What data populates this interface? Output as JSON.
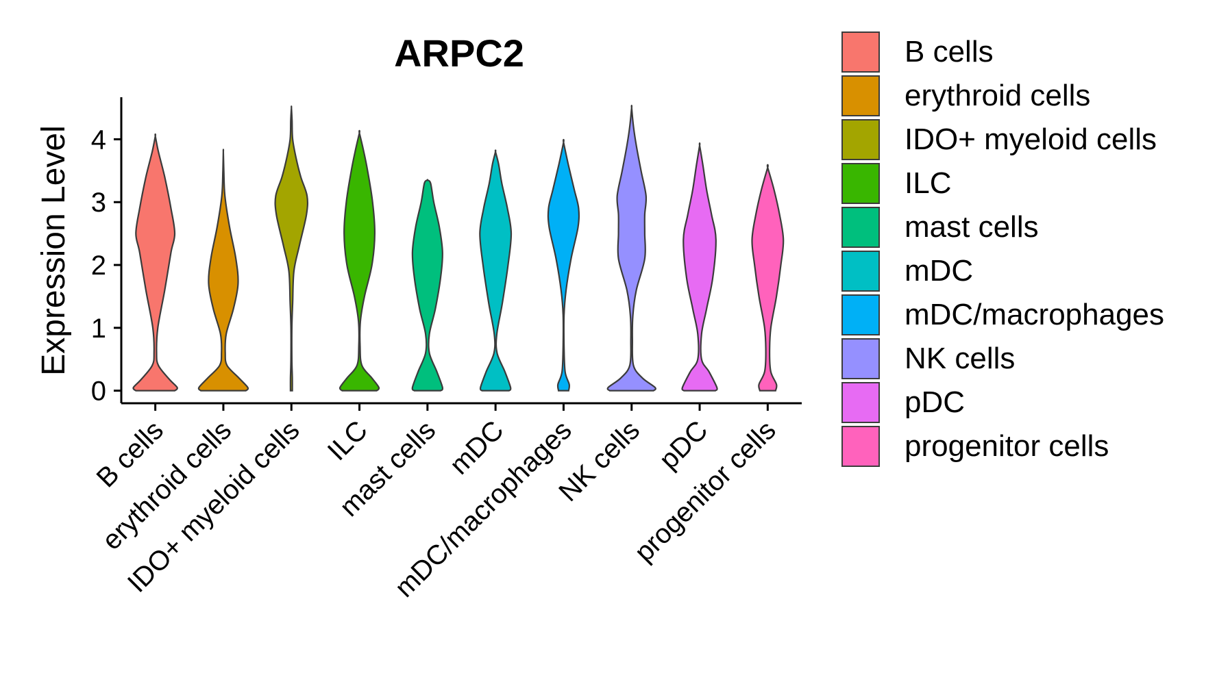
{
  "chart_data": {
    "type": "violin",
    "title": "ARPC2",
    "xlabel": "",
    "ylabel": "Expression Level",
    "ylim": [
      -0.2,
      4.8
    ],
    "yticks": [
      0,
      1,
      2,
      3,
      4
    ],
    "categories": [
      "B cells",
      "erythroid cells",
      "IDO+ myeloid cells",
      "ILC",
      "mast cells",
      "mDC",
      "mDC/macrophages",
      "NK cells",
      "pDC",
      "progenitor cells"
    ],
    "colors": [
      "#F8766D",
      "#D89000",
      "#A3A500",
      "#39B600",
      "#00BF7D",
      "#00BFC4",
      "#00B0F6",
      "#9590FF",
      "#E76BF3",
      "#FF62BC"
    ],
    "max_values": [
      4.05,
      3.8,
      4.5,
      4.1,
      3.35,
      3.8,
      3.95,
      4.5,
      3.9,
      3.55
    ],
    "density_profiles": [
      [
        [
          0,
          0.62
        ],
        [
          0.05,
          0.7
        ],
        [
          0.18,
          0.45
        ],
        [
          0.4,
          0.1
        ],
        [
          0.6,
          0.04
        ],
        [
          1.0,
          0.08
        ],
        [
          1.6,
          0.3
        ],
        [
          2.2,
          0.5
        ],
        [
          2.5,
          0.62
        ],
        [
          2.9,
          0.5
        ],
        [
          3.4,
          0.3
        ],
        [
          3.8,
          0.1
        ],
        [
          4.05,
          0
        ]
      ],
      [
        [
          0,
          0.72
        ],
        [
          0.05,
          0.78
        ],
        [
          0.2,
          0.5
        ],
        [
          0.4,
          0.12
        ],
        [
          0.6,
          0.06
        ],
        [
          0.9,
          0.09
        ],
        [
          1.3,
          0.32
        ],
        [
          1.7,
          0.47
        ],
        [
          2.1,
          0.4
        ],
        [
          2.6,
          0.2
        ],
        [
          3.1,
          0.05
        ],
        [
          3.5,
          0.015
        ],
        [
          3.8,
          0
        ]
      ],
      [
        [
          0,
          0.03
        ],
        [
          0.2,
          0.03
        ],
        [
          0.5,
          0.015
        ],
        [
          1.0,
          0.015
        ],
        [
          1.4,
          0.04
        ],
        [
          1.9,
          0.08
        ],
        [
          2.3,
          0.25
        ],
        [
          2.8,
          0.48
        ],
        [
          3.1,
          0.5
        ],
        [
          3.4,
          0.3
        ],
        [
          3.7,
          0.15
        ],
        [
          4.0,
          0.04
        ],
        [
          4.3,
          0.02
        ],
        [
          4.5,
          0
        ]
      ],
      [
        [
          0,
          0.55
        ],
        [
          0.05,
          0.62
        ],
        [
          0.2,
          0.4
        ],
        [
          0.4,
          0.08
        ],
        [
          0.7,
          0.02
        ],
        [
          1.1,
          0.03
        ],
        [
          1.5,
          0.16
        ],
        [
          2.0,
          0.4
        ],
        [
          2.5,
          0.49
        ],
        [
          3.0,
          0.42
        ],
        [
          3.5,
          0.26
        ],
        [
          3.8,
          0.14
        ],
        [
          4.1,
          0
        ]
      ],
      [
        [
          0,
          0.42
        ],
        [
          0.05,
          0.48
        ],
        [
          0.3,
          0.3
        ],
        [
          0.6,
          0.06
        ],
        [
          0.9,
          0.06
        ],
        [
          1.3,
          0.25
        ],
        [
          1.8,
          0.42
        ],
        [
          2.2,
          0.48
        ],
        [
          2.6,
          0.38
        ],
        [
          3.0,
          0.2
        ],
        [
          3.3,
          0.1
        ],
        [
          3.35,
          0
        ]
      ],
      [
        [
          0,
          0.43
        ],
        [
          0.05,
          0.48
        ],
        [
          0.3,
          0.3
        ],
        [
          0.6,
          0.05
        ],
        [
          0.9,
          0.04
        ],
        [
          1.4,
          0.22
        ],
        [
          2.0,
          0.4
        ],
        [
          2.5,
          0.5
        ],
        [
          2.9,
          0.38
        ],
        [
          3.3,
          0.2
        ],
        [
          3.6,
          0.1
        ],
        [
          3.8,
          0
        ]
      ],
      [
        [
          0,
          0.16
        ],
        [
          0.1,
          0.18
        ],
        [
          0.3,
          0.05
        ],
        [
          0.7,
          0.015
        ],
        [
          1.2,
          0.015
        ],
        [
          1.6,
          0.08
        ],
        [
          2.1,
          0.24
        ],
        [
          2.6,
          0.46
        ],
        [
          2.9,
          0.48
        ],
        [
          3.2,
          0.34
        ],
        [
          3.6,
          0.15
        ],
        [
          3.95,
          0
        ]
      ],
      [
        [
          0,
          0.7
        ],
        [
          0.05,
          0.75
        ],
        [
          0.2,
          0.35
        ],
        [
          0.4,
          0.06
        ],
        [
          0.8,
          0.025
        ],
        [
          1.2,
          0.04
        ],
        [
          1.6,
          0.15
        ],
        [
          2.1,
          0.42
        ],
        [
          2.5,
          0.42
        ],
        [
          2.8,
          0.42
        ],
        [
          3.1,
          0.46
        ],
        [
          3.5,
          0.3
        ],
        [
          3.9,
          0.15
        ],
        [
          4.2,
          0.06
        ],
        [
          4.5,
          0
        ]
      ],
      [
        [
          0,
          0.5
        ],
        [
          0.05,
          0.55
        ],
        [
          0.3,
          0.3
        ],
        [
          0.5,
          0.06
        ],
        [
          0.9,
          0.06
        ],
        [
          1.3,
          0.22
        ],
        [
          1.8,
          0.42
        ],
        [
          2.4,
          0.52
        ],
        [
          2.8,
          0.38
        ],
        [
          3.2,
          0.22
        ],
        [
          3.6,
          0.1
        ],
        [
          3.9,
          0
        ]
      ],
      [
        [
          0,
          0.25
        ],
        [
          0.1,
          0.28
        ],
        [
          0.3,
          0.1
        ],
        [
          0.6,
          0.06
        ],
        [
          1.0,
          0.1
        ],
        [
          1.5,
          0.28
        ],
        [
          2.0,
          0.42
        ],
        [
          2.4,
          0.5
        ],
        [
          2.8,
          0.38
        ],
        [
          3.2,
          0.2
        ],
        [
          3.55,
          0
        ]
      ]
    ]
  }
}
